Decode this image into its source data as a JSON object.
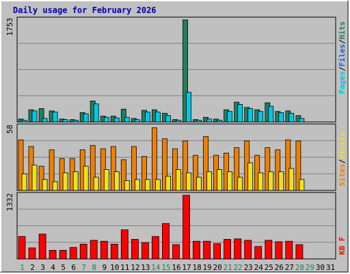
{
  "title": "Daily usage for February 2026",
  "colors": {
    "background": "#c0c0c0",
    "title": "#0000b0",
    "pages": "#00c8e8",
    "files": "#2060e0",
    "hits": "#208060",
    "sites": "#f08000",
    "visits": "#f0e020",
    "kbytes": "#ff0000",
    "weekend_day": "#208060",
    "weekday_day": "#000000"
  },
  "legend": {
    "top": [
      "Pages",
      "/",
      "Files",
      "/",
      "Hits"
    ],
    "middle": [
      "Sites",
      "/",
      "Visits"
    ],
    "bottom": "KB F"
  },
  "y_max_labels": {
    "top": "1753",
    "middle": "58",
    "bottom": "1332"
  },
  "days": [
    "1",
    "2",
    "3",
    "4",
    "5",
    "6",
    "7",
    "8",
    "9",
    "10",
    "11",
    "12",
    "13",
    "14",
    "15",
    "16",
    "17",
    "18",
    "19",
    "20",
    "21",
    "22",
    "23",
    "24",
    "25",
    "26",
    "27",
    "28",
    "29",
    "30",
    "31"
  ],
  "weekend_days": [
    "1",
    "7",
    "8",
    "14",
    "15",
    "21",
    "22",
    "28",
    "29"
  ],
  "chart_data": {
    "type": "bar",
    "title": "Daily usage for February 2026",
    "categories": [
      "1",
      "2",
      "3",
      "4",
      "5",
      "6",
      "7",
      "8",
      "9",
      "10",
      "11",
      "12",
      "13",
      "14",
      "15",
      "16",
      "17",
      "18",
      "19",
      "20",
      "21",
      "22",
      "23",
      "24",
      "25",
      "26",
      "27",
      "28",
      "29",
      "30",
      "31"
    ],
    "panels": [
      {
        "name": "top",
        "ylim": [
          0,
          1753
        ],
        "series": [
          {
            "name": "Hits",
            "values": [
              50,
              210,
              230,
              190,
              50,
              40,
              160,
              360,
              100,
              100,
              220,
              60,
              200,
              210,
              150,
              40,
              1753,
              40,
              80,
              50,
              210,
              340,
              250,
              210,
              330,
              180,
              190,
              110,
              null,
              null,
              null
            ]
          },
          {
            "name": "Pages",
            "values": [
              30,
              190,
              60,
              170,
              40,
              30,
              140,
              310,
              80,
              70,
              80,
              40,
              170,
              170,
              110,
              30,
              510,
              30,
              50,
              30,
              180,
              300,
              230,
              180,
              270,
              160,
              150,
              60,
              null,
              null,
              null
            ]
          }
        ]
      },
      {
        "name": "middle",
        "ylim": [
          0,
          58
        ],
        "series": [
          {
            "name": "Sites",
            "values": [
              46,
              40,
              22,
              37,
              29,
              29,
              37,
              41,
              38,
              40,
              28,
              40,
              31,
              57,
              47,
              38,
              45,
              32,
              49,
              32,
              34,
              39,
              45,
              32,
              39,
              37,
              46,
              45,
              null,
              null,
              null
            ]
          },
          {
            "name": "Visits",
            "values": [
              15,
              23,
              10,
              8,
              16,
              17,
              22,
              12,
              19,
              17,
              9,
              10,
              10,
              10,
              13,
              19,
              16,
              12,
              17,
              19,
              17,
              12,
              25,
              16,
              17,
              17,
              20,
              10,
              null,
              null,
              null
            ]
          }
        ]
      },
      {
        "name": "bottom",
        "ylim": [
          0,
          1332
        ],
        "series": [
          {
            "name": "KB F",
            "values": [
              470,
              230,
              520,
              180,
              180,
              240,
              310,
              390,
              370,
              310,
              610,
              410,
              340,
              470,
              740,
              300,
              1332,
              370,
              370,
              320,
              410,
              420,
              390,
              260,
              390,
              360,
              370,
              300,
              null,
              null,
              null
            ]
          }
        ]
      }
    ]
  }
}
